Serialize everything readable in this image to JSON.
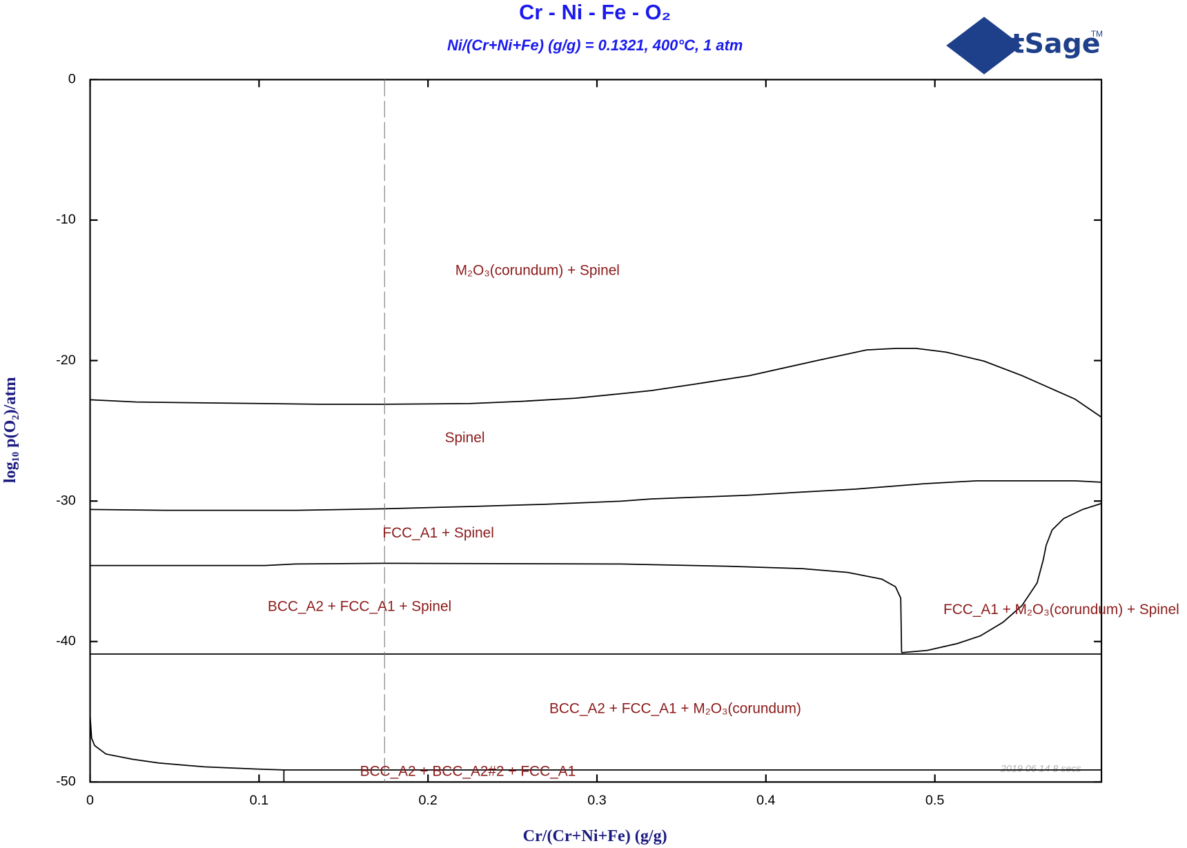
{
  "chart_data": {
    "type": "line",
    "title": "Cr - Ni - Fe - O₂",
    "subtitle": "Ni/(Cr+Ni+Fe) (g/g) = 0.1321, 400°C, 1 atm",
    "logo": "FactSage",
    "logo_mark": "TM",
    "timestamp": "2019 06 14  8 secs",
    "x_label": "Cr/(Cr+Ni+Fe) (g/g)",
    "y_label": "log₁₀ p(O₂)/atm",
    "xlim": [
      0,
      0.5986
    ],
    "ylim": [
      -50,
      0
    ],
    "xticks": [
      0,
      0.1,
      0.2,
      0.3,
      0.4,
      0.5
    ],
    "yticks": [
      0,
      -10,
      -20,
      -30,
      -40,
      -50
    ],
    "line_color": "#000000",
    "label_color": "#8b1a1a",
    "title_color": "#1a1aee",
    "regions": [
      "M₂O₃(corundum) + Spinel",
      "Spinel",
      "FCC_A1 + Spinel",
      "BCC_A2 + FCC_A1 + Spinel",
      "FCC_A1 + M₂O₃(corundum) + Spinel",
      "BCC_A2 + FCC_A1 + M₂O₃(corundum)",
      "BCC_A2 + BCC_A2#2 + FCC_A1"
    ],
    "lines": [
      {
        "x": [
          0,
          0.0273,
          0.0587,
          0.1035,
          0.1349,
          0.1743,
          0.2245,
          0.2558,
          0.2872,
          0.3141,
          0.332,
          0.3589,
          0.3903,
          0.4306,
          0.4597,
          0.4776,
          0.4888,
          0.5067,
          0.5291,
          0.5515,
          0.5829,
          0.5986
        ],
        "y": [
          -22.79,
          -22.95,
          -23.0,
          -23.06,
          -23.11,
          -23.11,
          -23.06,
          -22.9,
          -22.68,
          -22.36,
          -22.14,
          -21.66,
          -21.07,
          -19.99,
          -19.24,
          -19.13,
          -19.13,
          -19.4,
          -20.04,
          -21.07,
          -22.74,
          -24.03
        ],
        "style": "solid"
      },
      {
        "x": [
          0,
          0.0453,
          0.1214,
          0.1743,
          0.2245,
          0.2693,
          0.3141,
          0.332,
          0.3903,
          0.4216,
          0.453,
          0.4933,
          0.5246,
          0.5605,
          0.5829,
          0.5986
        ],
        "y": [
          -30.6,
          -30.66,
          -30.66,
          -30.55,
          -30.39,
          -30.23,
          -30.01,
          -29.85,
          -29.58,
          -29.36,
          -29.15,
          -28.77,
          -28.56,
          -28.56,
          -28.56,
          -28.66
        ],
        "style": "solid"
      },
      {
        "x": [
          0,
          0.1035,
          0.1214,
          0.1743,
          0.3141,
          0.3768,
          0.4216,
          0.4485,
          0.4686,
          0.4767,
          0.4798,
          0.4803
        ],
        "y": [
          -34.59,
          -34.59,
          -34.48,
          -34.43,
          -34.48,
          -34.64,
          -34.81,
          -35.08,
          -35.56,
          -36.1,
          -36.91,
          -40.79
        ],
        "style": "solid"
      },
      {
        "x": [
          0.4803,
          0.4955,
          0.5134,
          0.5269,
          0.5403,
          0.5515,
          0.5605,
          0.5641,
          0.5659,
          0.5694,
          0.5762,
          0.5874,
          0.5986
        ],
        "y": [
          -40.79,
          -40.63,
          -40.14,
          -39.6,
          -38.63,
          -37.45,
          -35.83,
          -34.21,
          -33.14,
          -32.06,
          -31.25,
          -30.6,
          -30.17
        ],
        "style": "solid"
      },
      {
        "x": [
          0,
          0.5986
        ],
        "y": [
          -40.89,
          -40.89
        ],
        "style": "solid"
      },
      {
        "x": [
          0,
          0.0009,
          0.0027,
          0.0094,
          0.0251,
          0.0409,
          0.0677,
          0.0991,
          0.1147,
          0.5986
        ],
        "y": [
          -45.26,
          -46.88,
          -47.41,
          -48.01,
          -48.38,
          -48.65,
          -48.92,
          -49.08,
          -49.14,
          -49.14
        ],
        "style": "solid"
      },
      {
        "x": [
          0.1147,
          0.1147
        ],
        "y": [
          -49.14,
          -50
        ],
        "style": "solid"
      },
      {
        "x": [
          0.1743,
          0.1743
        ],
        "y": [
          0,
          -50
        ],
        "style": "dashed"
      }
    ]
  }
}
